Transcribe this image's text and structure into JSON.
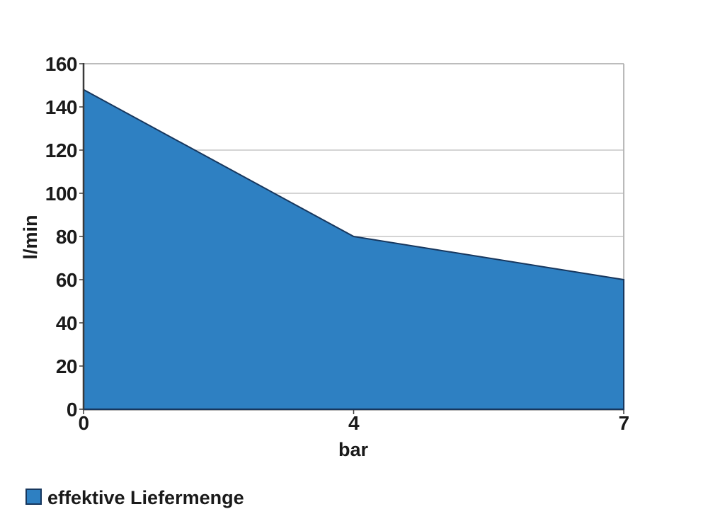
{
  "chart_data": {
    "type": "area",
    "title": "",
    "categories": [
      "0",
      "4",
      "7"
    ],
    "series": [
      {
        "name": "effektive Liefermenge",
        "values": [
          148,
          80,
          60
        ]
      }
    ],
    "xlabel": "bar",
    "ylabel": "l/min",
    "ylim": [
      0,
      160
    ],
    "yticks": [
      "0",
      "20",
      "40",
      "60",
      "80",
      "100",
      "120",
      "140",
      "160"
    ],
    "ytick_values": [
      0,
      20,
      40,
      60,
      80,
      100,
      120,
      140,
      160
    ],
    "gridline_values": [
      120,
      100,
      80
    ],
    "grid": "partial-horizontal",
    "legend_position": "bottom-left",
    "colors": {
      "series_fill": "#2E80C2",
      "series_outline": "#17375E",
      "text": "#1a1a1a",
      "gridline": "#c6c6c6",
      "plot_border": "#b3b3b3",
      "background": "#ffffff"
    }
  },
  "legend": {
    "label": "effektive Liefermenge"
  }
}
